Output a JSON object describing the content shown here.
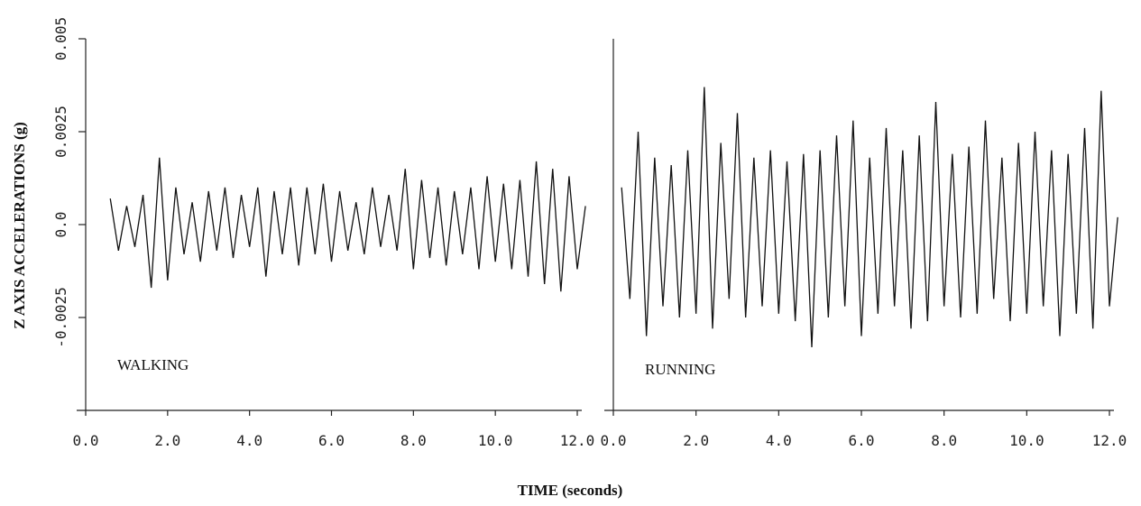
{
  "xlabel": "TIME (seconds)",
  "ylabel": "Z AXIS ACCELERATIONS (g)",
  "chart_data": [
    {
      "type": "line",
      "annotation": "WALKING",
      "color": "#111111",
      "xlim": [
        0,
        12
      ],
      "ylim": [
        -0.005,
        0.005
      ],
      "xticks": [
        {
          "value": 0,
          "label": "0.0"
        },
        {
          "value": 2,
          "label": "2.0"
        },
        {
          "value": 4,
          "label": "4.0"
        },
        {
          "value": 6,
          "label": "6.0"
        },
        {
          "value": 8,
          "label": "8.0"
        },
        {
          "value": 10,
          "label": "10.0"
        },
        {
          "value": 12,
          "label": "12.0"
        }
      ],
      "yticks": [
        {
          "value": -0.0025,
          "label": "-0.0025"
        },
        {
          "value": 0,
          "label": "0.0"
        },
        0.0025,
        0.005
      ],
      "x": [
        0.6,
        0.8,
        1.0,
        1.2,
        1.4,
        1.6,
        1.8,
        2.0,
        2.2,
        2.4,
        2.6,
        2.8,
        3.0,
        3.2,
        3.4,
        3.6,
        3.8,
        4.0,
        4.2,
        4.4,
        4.6,
        4.8,
        5.0,
        5.2,
        5.4,
        5.6,
        5.8,
        6.0,
        6.2,
        6.4,
        6.6,
        6.8,
        7.0,
        7.2,
        7.4,
        7.6,
        7.8,
        8.0,
        8.2,
        8.4,
        8.6,
        8.8,
        9.0,
        9.2,
        9.4,
        9.6,
        9.8,
        10.0,
        10.2,
        10.4,
        10.6,
        10.8,
        11.0,
        11.2,
        11.4,
        11.6,
        11.8,
        12.0,
        12.2
      ],
      "values": [
        0.0007,
        -0.0007,
        0.0005,
        -0.0006,
        0.0008,
        -0.0017,
        0.0018,
        -0.0015,
        0.001,
        -0.0008,
        0.0006,
        -0.001,
        0.0009,
        -0.0007,
        0.001,
        -0.0009,
        0.0008,
        -0.0006,
        0.001,
        -0.0014,
        0.0009,
        -0.0008,
        0.001,
        -0.0011,
        0.001,
        -0.0008,
        0.0011,
        -0.001,
        0.0009,
        -0.0007,
        0.0006,
        -0.0008,
        0.001,
        -0.0006,
        0.0008,
        -0.0007,
        0.0015,
        -0.0012,
        0.0012,
        -0.0009,
        0.001,
        -0.0011,
        0.0009,
        -0.0008,
        0.001,
        -0.0012,
        0.0013,
        -0.001,
        0.0011,
        -0.0012,
        0.0012,
        -0.0014,
        0.0017,
        -0.0016,
        0.0015,
        -0.0018,
        0.0013,
        -0.0012,
        0.0005
      ]
    },
    {
      "type": "line",
      "annotation": "RUNNING",
      "color": "#111111",
      "xlim": [
        0,
        12
      ],
      "ylim": [
        -0.005,
        0.005
      ],
      "xticks": [
        {
          "value": 0,
          "label": "0.0"
        },
        {
          "value": 2,
          "label": "2.0"
        },
        {
          "value": 4,
          "label": "4.0"
        },
        {
          "value": 6,
          "label": "6.0"
        },
        {
          "value": 8,
          "label": "8.0"
        },
        {
          "value": 10,
          "label": "10.0"
        },
        {
          "value": 12,
          "label": "12.0"
        }
      ],
      "x": [
        0.2,
        0.4,
        0.6,
        0.8,
        1.0,
        1.2,
        1.4,
        1.6,
        1.8,
        2.0,
        2.2,
        2.4,
        2.6,
        2.8,
        3.0,
        3.2,
        3.4,
        3.6,
        3.8,
        4.0,
        4.2,
        4.4,
        4.6,
        4.8,
        5.0,
        5.2,
        5.4,
        5.6,
        5.8,
        6.0,
        6.2,
        6.4,
        6.6,
        6.8,
        7.0,
        7.2,
        7.4,
        7.6,
        7.8,
        8.0,
        8.2,
        8.4,
        8.6,
        8.8,
        9.0,
        9.2,
        9.4,
        9.6,
        9.8,
        10.0,
        10.2,
        10.4,
        10.6,
        10.8,
        11.0,
        11.2,
        11.4,
        11.6,
        11.8,
        12.0,
        12.2
      ],
      "values": [
        0.001,
        -0.002,
        0.0025,
        -0.003,
        0.0018,
        -0.0022,
        0.0016,
        -0.0025,
        0.002,
        -0.0024,
        0.0037,
        -0.0028,
        0.0022,
        -0.002,
        0.003,
        -0.0025,
        0.0018,
        -0.0022,
        0.002,
        -0.0024,
        0.0017,
        -0.0026,
        0.0019,
        -0.0033,
        0.002,
        -0.0025,
        0.0024,
        -0.0022,
        0.0028,
        -0.003,
        0.0018,
        -0.0024,
        0.0026,
        -0.0022,
        0.002,
        -0.0028,
        0.0024,
        -0.0026,
        0.0033,
        -0.0022,
        0.0019,
        -0.0025,
        0.0021,
        -0.0024,
        0.0028,
        -0.002,
        0.0018,
        -0.0026,
        0.0022,
        -0.0024,
        0.0025,
        -0.0022,
        0.002,
        -0.003,
        0.0019,
        -0.0024,
        0.0026,
        -0.0028,
        0.0036,
        -0.0022,
        0.0002
      ]
    }
  ]
}
